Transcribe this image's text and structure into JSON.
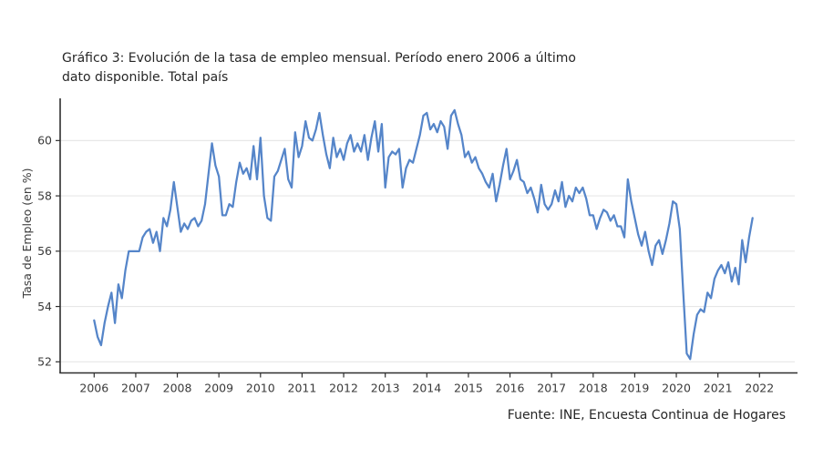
{
  "page": {
    "background": "#ffffff"
  },
  "header": {
    "title_line1": "Gráfico 3: Evolución de la tasa de empleo mensual. Período enero 2006 a último",
    "title_line2": "dato disponible. Total país"
  },
  "footer": {
    "source": "Fuente: INE, Encuesta Continua de Hogares"
  },
  "chart_data": {
    "type": "line",
    "title": "Gráfico 3: Evolución de la tasa de empleo mensual. Período enero 2006 a último dato disponible. Total país",
    "xlabel": "",
    "ylabel": "Tasa de Empleo (en %)",
    "x_tick_labels": [
      "2006",
      "2007",
      "2008",
      "2009",
      "2010",
      "2011",
      "2012",
      "2013",
      "2014",
      "2015",
      "2016",
      "2017",
      "2018",
      "2019",
      "2020",
      "2021",
      "2022"
    ],
    "y_ticks": [
      52,
      54,
      56,
      58,
      60
    ],
    "ylim": [
      51.6,
      61.5
    ],
    "grid": "horizontal-only",
    "legend_position": "none",
    "line_color": "#5585C9",
    "axis_color": "#2f2f2f",
    "grid_color": "#e7e7e7",
    "text_color": "#3a3a3a",
    "series": [
      {
        "name": "Tasa de empleo mensual (%)",
        "frequency": "monthly",
        "start_month": "2006-01",
        "end_month": "2021-11",
        "values": [
          53.5,
          52.9,
          52.6,
          53.4,
          54.0,
          54.5,
          53.4,
          54.8,
          54.3,
          55.3,
          56.0,
          56.0,
          56.0,
          56.0,
          56.5,
          56.7,
          56.8,
          56.3,
          56.7,
          56.0,
          57.2,
          56.9,
          57.5,
          58.5,
          57.6,
          56.7,
          57.0,
          56.8,
          57.1,
          57.2,
          56.9,
          57.1,
          57.7,
          58.8,
          59.9,
          59.1,
          58.7,
          57.3,
          57.3,
          57.7,
          57.6,
          58.5,
          59.2,
          58.8,
          59.0,
          58.6,
          59.8,
          58.6,
          60.1,
          58.0,
          57.2,
          57.1,
          58.7,
          58.9,
          59.3,
          59.7,
          58.6,
          58.3,
          60.3,
          59.4,
          59.8,
          60.7,
          60.1,
          60.0,
          60.4,
          61.0,
          60.2,
          59.5,
          59.0,
          60.1,
          59.4,
          59.7,
          59.3,
          59.9,
          60.2,
          59.6,
          59.9,
          59.6,
          60.2,
          59.3,
          60.1,
          60.7,
          59.6,
          60.6,
          58.3,
          59.4,
          59.6,
          59.5,
          59.7,
          58.3,
          59.0,
          59.3,
          59.2,
          59.7,
          60.2,
          60.9,
          61.0,
          60.4,
          60.6,
          60.3,
          60.7,
          60.5,
          59.7,
          60.9,
          61.1,
          60.6,
          60.2,
          59.4,
          59.6,
          59.2,
          59.4,
          59.0,
          58.8,
          58.5,
          58.3,
          58.8,
          57.8,
          58.4,
          59.1,
          59.7,
          58.6,
          58.9,
          59.3,
          58.6,
          58.5,
          58.1,
          58.3,
          57.9,
          57.4,
          58.4,
          57.7,
          57.5,
          57.7,
          58.2,
          57.8,
          58.5,
          57.6,
          58.0,
          57.8,
          58.3,
          58.1,
          58.3,
          57.9,
          57.3,
          57.3,
          56.8,
          57.2,
          57.5,
          57.4,
          57.1,
          57.3,
          56.9,
          56.9,
          56.5,
          58.6,
          57.8,
          57.2,
          56.6,
          56.2,
          56.7,
          56.0,
          55.5,
          56.2,
          56.4,
          55.9,
          56.4,
          57.0,
          57.8,
          57.7,
          56.8,
          54.5,
          52.3,
          52.1,
          53.0,
          53.7,
          53.9,
          53.8,
          54.5,
          54.3,
          55.0,
          55.3,
          55.5,
          55.2,
          55.6,
          54.9,
          55.4,
          54.8,
          56.4,
          55.6,
          56.5,
          57.2
        ]
      }
    ]
  }
}
